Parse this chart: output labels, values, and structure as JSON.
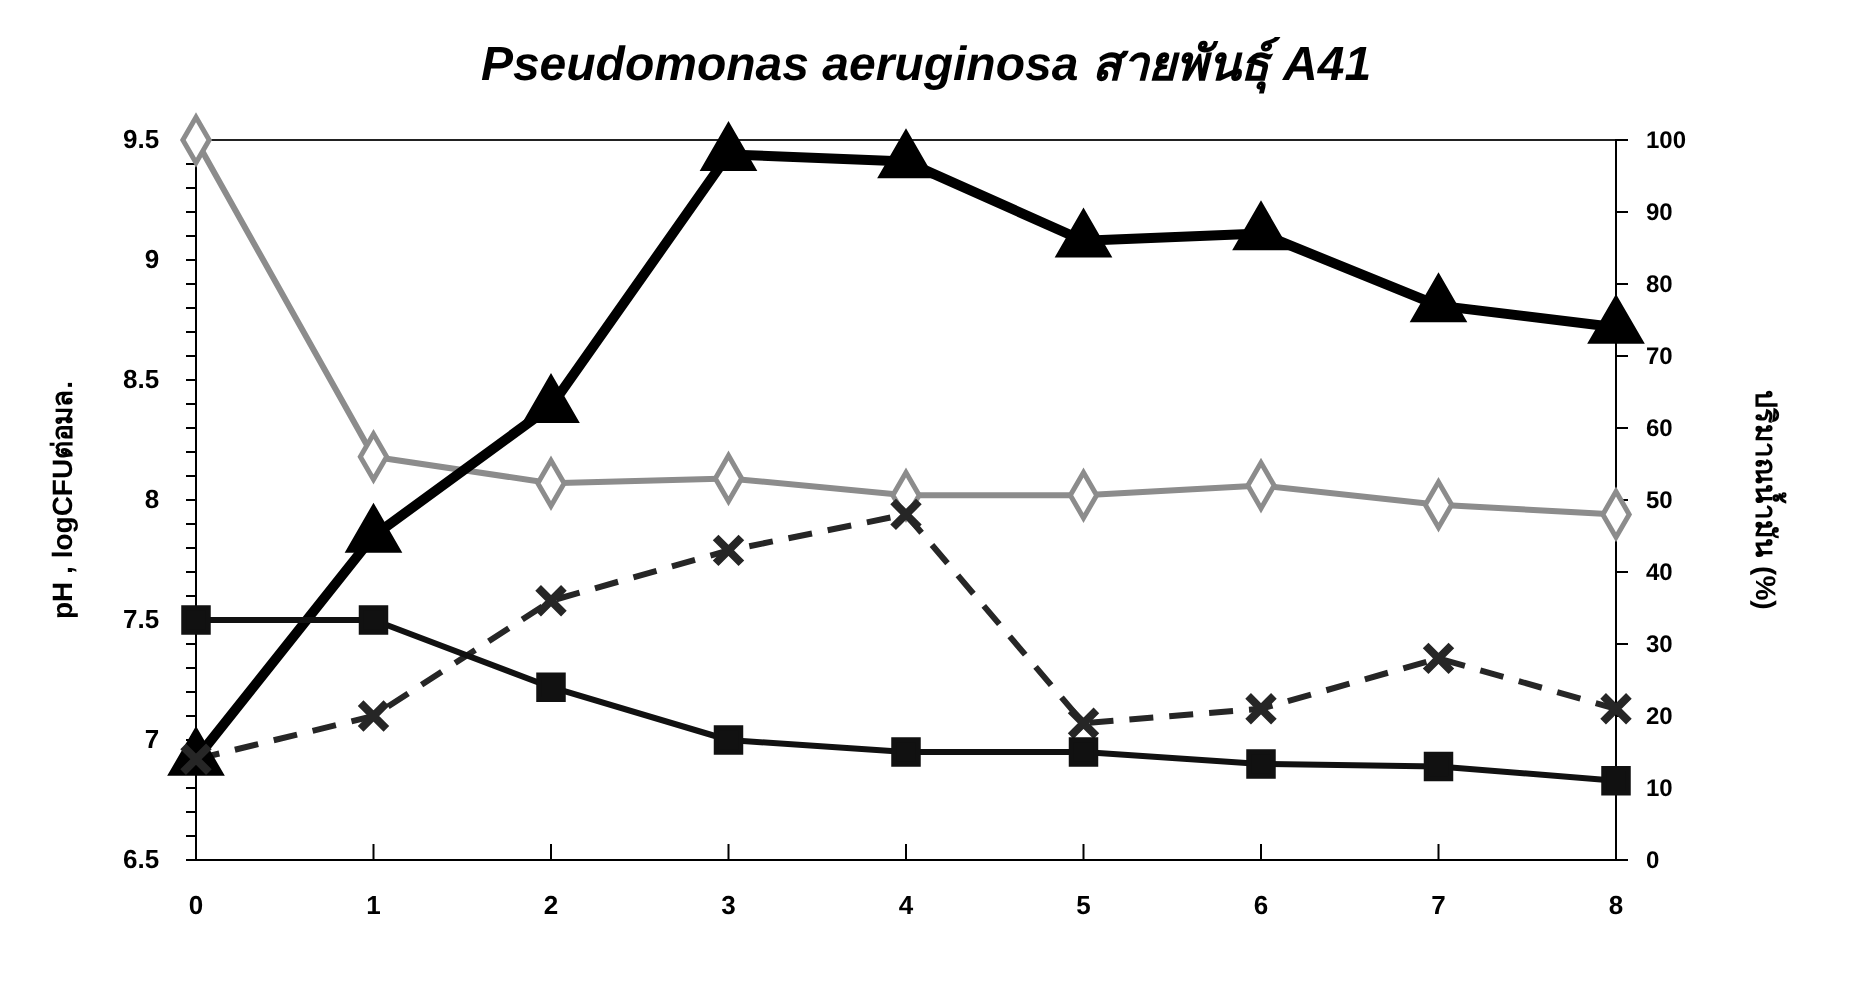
{
  "chart_data": {
    "type": "line",
    "title": "Pseudomonas  aeruginosa สายพันธุ์ A41",
    "ylabel": "pH , logCFUต่อมล.",
    "y2label": "ปริมาณน้ำมัน (%)",
    "x": [
      0,
      1,
      2,
      3,
      4,
      5,
      6,
      7,
      8
    ],
    "xlim": [
      0,
      8
    ],
    "xticks": [
      0,
      1,
      2,
      3,
      4,
      5,
      6,
      7,
      8
    ],
    "ylim": [
      6.5,
      9.5
    ],
    "yticks": [
      6.5,
      {
        "value": 6.6,
        "label": null
      },
      {
        "value": 6.7,
        "label": null
      },
      {
        "value": 6.8,
        "label": null
      },
      {
        "value": 6.9,
        "label": null
      },
      7,
      {
        "value": 7.1,
        "label": null
      },
      {
        "value": 7.2,
        "label": null
      },
      {
        "value": 7.3,
        "label": null
      },
      {
        "value": 7.4,
        "label": null
      },
      7.5,
      {
        "value": 7.6,
        "label": null
      },
      {
        "value": 7.7,
        "label": null
      },
      {
        "value": 7.8,
        "label": null
      },
      {
        "value": 7.9,
        "label": null
      },
      8,
      {
        "value": 8.1,
        "label": null
      },
      {
        "value": 8.2,
        "label": null
      },
      {
        "value": 8.3,
        "label": null
      },
      {
        "value": 8.4,
        "label": null
      },
      8.5,
      {
        "value": 8.6,
        "label": null
      },
      {
        "value": 8.7,
        "label": null
      },
      {
        "value": 8.8,
        "label": null
      },
      {
        "value": 8.9,
        "label": null
      },
      9,
      {
        "value": 9.1,
        "label": null
      },
      {
        "value": 9.2,
        "label": null
      },
      {
        "value": 9.3,
        "label": null
      },
      {
        "value": 9.4,
        "label": null
      },
      9.5
    ],
    "y2lim": [
      0,
      100
    ],
    "y2ticks": [
      0,
      10,
      20,
      30,
      40,
      50,
      60,
      70,
      80,
      90,
      100
    ],
    "grid": false,
    "series": [
      {
        "color": "#8c8c8c",
        "marker": "diamond",
        "line_style": "solid",
        "values": [
          9.5,
          8.18,
          8.07,
          8.09,
          8.02,
          8.02,
          8.06,
          7.98,
          7.94
        ]
      },
      {
        "color": "#000000",
        "marker": "triangle",
        "line_style": "solid",
        "axis": "y2",
        "values": [
          14,
          45,
          63,
          98,
          97,
          86,
          87,
          77,
          74
        ]
      },
      {
        "color": "#262626",
        "marker": "cross",
        "line_style": "dashed",
        "axis": "y2",
        "values": [
          14,
          20,
          36,
          43,
          48,
          19,
          21,
          28,
          21
        ]
      },
      {
        "color": "#111111",
        "marker": "square",
        "line_style": "solid",
        "values": [
          7.5,
          7.5,
          7.22,
          7.0,
          6.95,
          6.95,
          6.9,
          6.89,
          6.83
        ]
      }
    ]
  }
}
